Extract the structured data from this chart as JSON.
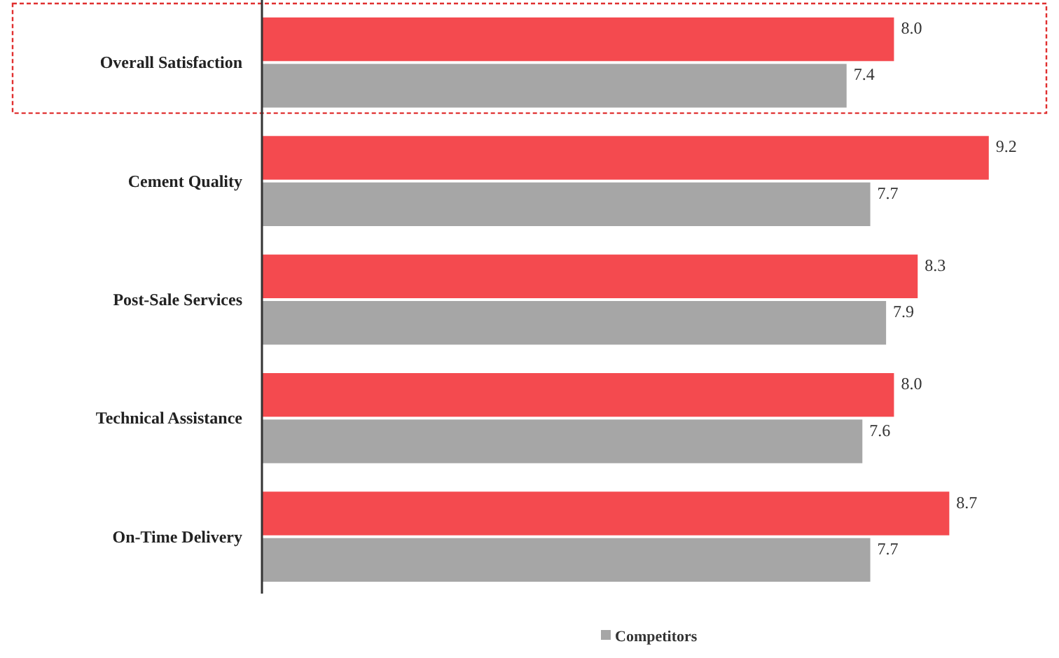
{
  "chart_data": {
    "type": "bar",
    "orientation": "horizontal",
    "categories": [
      "Overall Satisfaction",
      "Cement Quality",
      "Post-Sale Services",
      "Technical Assistance",
      "On-Time Delivery"
    ],
    "series": [
      {
        "color": "#f44a4f",
        "values": [
          8.0,
          9.2,
          8.3,
          8.0,
          8.7
        ],
        "value_labels": [
          "8.0",
          "9.2",
          "8.3",
          "8.0",
          "8.7"
        ]
      },
      {
        "name": "Competitors",
        "color": "#a6a6a6",
        "values": [
          7.4,
          7.7,
          7.9,
          7.6,
          7.7
        ],
        "value_labels": [
          "7.4",
          "7.7",
          "7.9",
          "7.6",
          "7.7"
        ]
      }
    ],
    "legend": "bottom",
    "tick_labels": "y"
  }
}
